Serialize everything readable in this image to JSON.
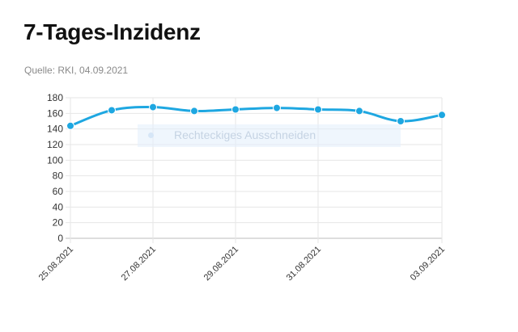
{
  "title": "7-Tages-Inzidenz",
  "source": "Quelle: RKI, 04.09.2021",
  "overlay": {
    "label": "Rechteckiges Ausschneiden",
    "icon": "selection-dot-icon"
  },
  "colors": {
    "line": "#1ea7e1",
    "grid": "#e6e6e6",
    "axis": "#bbbbbb"
  },
  "chart_data": {
    "type": "line",
    "title": "7-Tages-Inzidenz",
    "xlabel": "",
    "ylabel": "",
    "ylim": [
      0,
      180
    ],
    "yticks": [
      0,
      20,
      40,
      60,
      80,
      100,
      120,
      140,
      160,
      180
    ],
    "grid": true,
    "legend": "none",
    "x": [
      "25.08.2021",
      "26.08.2021",
      "27.08.2021",
      "28.08.2021",
      "29.08.2021",
      "30.08.2021",
      "31.08.2021",
      "01.09.2021",
      "02.09.2021",
      "03.09.2021"
    ],
    "xtick_labels": [
      "25.08.2021",
      "27.08.2021",
      "29.08.2021",
      "31.08.2021",
      "03.09.2021"
    ],
    "series": [
      {
        "values": [
          144,
          164,
          168,
          163,
          165,
          167,
          165,
          163,
          150,
          158
        ]
      }
    ]
  }
}
